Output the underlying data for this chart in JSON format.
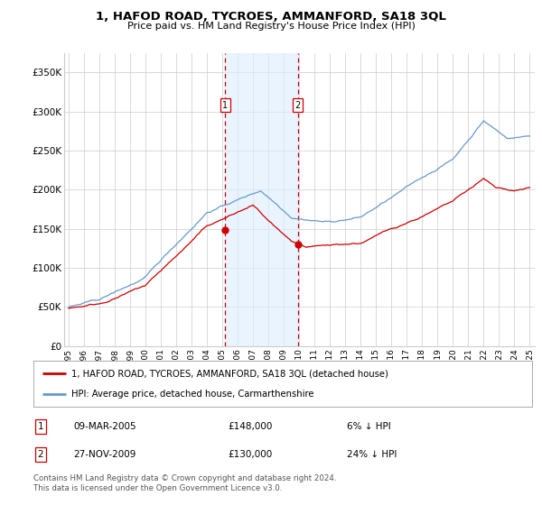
{
  "title": "1, HAFOD ROAD, TYCROES, AMMANFORD, SA18 3QL",
  "subtitle": "Price paid vs. HM Land Registry's House Price Index (HPI)",
  "legend_label_red": "1, HAFOD ROAD, TYCROES, AMMANFORD, SA18 3QL (detached house)",
  "legend_label_blue": "HPI: Average price, detached house, Carmarthenshire",
  "transaction1_date": "09-MAR-2005",
  "transaction1_price": "£148,000",
  "transaction1_pct": "6% ↓ HPI",
  "transaction2_date": "27-NOV-2009",
  "transaction2_price": "£130,000",
  "transaction2_pct": "24% ↓ HPI",
  "footer": "Contains HM Land Registry data © Crown copyright and database right 2024.\nThis data is licensed under the Open Government Licence v3.0.",
  "ylim": [
    0,
    375000
  ],
  "yticks": [
    0,
    50000,
    100000,
    150000,
    200000,
    250000,
    300000,
    350000
  ],
  "ytick_labels": [
    "£0",
    "£50K",
    "£100K",
    "£150K",
    "£200K",
    "£250K",
    "£300K",
    "£350K"
  ],
  "color_red": "#cc0000",
  "color_blue": "#6699cc",
  "color_shading": "#ddeeff",
  "bg_color": "#ffffff",
  "grid_color": "#cccccc",
  "transaction1_x": 2005.19,
  "transaction2_x": 2009.91,
  "xlim_left": 1994.7,
  "xlim_right": 2025.3
}
